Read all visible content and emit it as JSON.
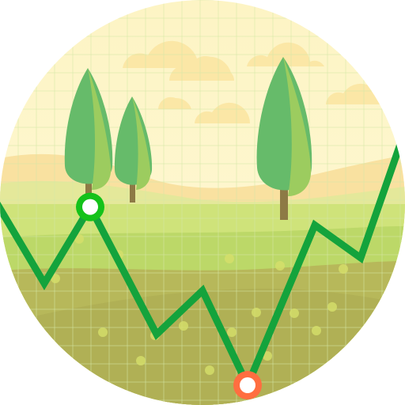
{
  "illustration": {
    "subject": "landscape-trend-badge",
    "colors": {
      "sky_top": "#fdf4c4",
      "sky_bottom": "#fef9d8",
      "cloud": "#fbe7a6",
      "grid": "#d6e8a6",
      "hill_far": "#f9e1a0",
      "hill_mid": "#e4e89a",
      "grass_light": "#cfe37a",
      "grass_mid": "#bcd868",
      "grass_dark": "#b7b85a",
      "ground": "#b0b055",
      "tree_light": "#9ccc5f",
      "tree_dark": "#66bb6a",
      "trunk": "#8d7a45",
      "line": "#14a33c",
      "marker_high_ring": "#14c21a",
      "marker_low_ring": "#ff6e40",
      "marker_center": "#ffffff",
      "dots": "#d6e06a"
    },
    "trend_points": [
      {
        "x": 0,
        "y": 57
      },
      {
        "x": 1,
        "y": 79
      },
      {
        "x": 2,
        "y": 58
      },
      {
        "x": 3,
        "y": 93
      },
      {
        "x": 4,
        "y": 81
      },
      {
        "x": 5,
        "y": 107
      },
      {
        "x": 6,
        "y": 63
      },
      {
        "x": 7,
        "y": 72
      },
      {
        "x": 8,
        "y": 37
      }
    ],
    "markers": [
      {
        "name": "peak-marker",
        "point_index": 2,
        "ring": "marker_high_ring"
      },
      {
        "name": "low-marker",
        "point_index": 5,
        "ring": "marker_low_ring"
      }
    ],
    "icons": [
      "tree-icon",
      "cloud-icon",
      "trend-line-icon"
    ]
  }
}
